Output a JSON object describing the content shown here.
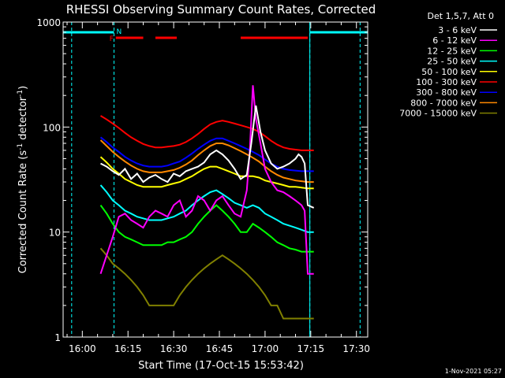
{
  "chart_data": {
    "type": "line",
    "title": "RHESSI Observing Summary Count Rates, Corrected",
    "xlabel": "Start Time (17-Oct-15 15:53:42)",
    "ylabel_main": "Corrected Count Rate (s",
    "ylabel_sup1": "-1",
    "ylabel_mid": " detector",
    "ylabel_sup2": "-1",
    "ylabel_end": ")",
    "yscale": "log",
    "ylim": [
      1,
      1000
    ],
    "xlim_min": [
      -6.3,
      93.7
    ],
    "x_ticks": [
      {
        "label": "16:00",
        "min": 0
      },
      {
        "label": "16:15",
        "min": 15
      },
      {
        "label": "16:30",
        "min": 30
      },
      {
        "label": "16:45",
        "min": 45
      },
      {
        "label": "17:00",
        "min": 60
      },
      {
        "label": "17:15",
        "min": 75
      },
      {
        "label": "17:30",
        "min": 90
      }
    ],
    "y_ticks": [
      {
        "label": "1",
        "value": 1
      },
      {
        "label": "10",
        "value": 10
      },
      {
        "label": "100",
        "value": 100
      },
      {
        "label": "1000",
        "value": 1000
      }
    ],
    "legend_title": "Det 1,5,7, Att 0",
    "legend_position": "top-right",
    "series": [
      {
        "name": "3 - 6 keV",
        "color": "#ffffff",
        "x": [
          6,
          8,
          10,
          12,
          14,
          16,
          18,
          20,
          22,
          24,
          26,
          28,
          30,
          32,
          34,
          36,
          38,
          40,
          42,
          44,
          46,
          48,
          50,
          52,
          54,
          55.5,
          57,
          58.5,
          60,
          62,
          64,
          66,
          68,
          70,
          71,
          72,
          73,
          74,
          76
        ],
        "y": [
          45,
          42,
          38,
          35,
          40,
          32,
          36,
          30,
          33,
          35,
          32,
          30,
          36,
          34,
          38,
          40,
          42,
          46,
          55,
          60,
          55,
          48,
          40,
          32,
          35,
          70,
          160,
          90,
          60,
          45,
          40,
          42,
          45,
          50,
          55,
          52,
          45,
          18,
          17
        ]
      },
      {
        "name": "6 - 12 keV",
        "color": "#ff00ff",
        "x": [
          6,
          8,
          10,
          12,
          14,
          16,
          18,
          20,
          22,
          24,
          26,
          28,
          30,
          32,
          34,
          36,
          38,
          40,
          42,
          44,
          46,
          48,
          50,
          52,
          54,
          55,
          56,
          57,
          58.5,
          60,
          62,
          64,
          66,
          68,
          70,
          72,
          73,
          74,
          76
        ],
        "y": [
          4,
          6,
          9,
          14,
          15,
          13,
          12,
          11,
          14,
          16,
          15,
          14,
          18,
          20,
          14,
          16,
          22,
          20,
          16,
          20,
          22,
          18,
          15,
          14,
          25,
          60,
          250,
          120,
          70,
          40,
          30,
          25,
          24,
          22,
          20,
          18,
          16,
          4,
          4
        ]
      },
      {
        "name": "12 - 25 keV",
        "color": "#00ff00",
        "x": [
          6,
          8,
          10,
          12,
          14,
          16,
          18,
          20,
          22,
          24,
          26,
          28,
          30,
          32,
          34,
          36,
          38,
          40,
          42,
          44,
          46,
          48,
          50,
          52,
          54,
          56,
          58,
          60,
          62,
          64,
          66,
          68,
          70,
          72,
          74,
          76
        ],
        "y": [
          18,
          15,
          12,
          10,
          9,
          8.5,
          8,
          7.5,
          7.5,
          7.5,
          7.5,
          8,
          8,
          8.5,
          9,
          10,
          12,
          14,
          16,
          18,
          16,
          14,
          12,
          10,
          10,
          12,
          11,
          10,
          9,
          8,
          7.5,
          7,
          6.8,
          6.5,
          6.5,
          6.5
        ]
      },
      {
        "name": "25 - 50 keV",
        "color": "#00ffff",
        "x": [
          6,
          8,
          10,
          12,
          14,
          16,
          18,
          20,
          22,
          24,
          26,
          28,
          30,
          32,
          34,
          36,
          38,
          40,
          42,
          44,
          46,
          48,
          50,
          52,
          54,
          56,
          58,
          60,
          62,
          64,
          66,
          68,
          70,
          72,
          74,
          76
        ],
        "y": [
          28,
          24,
          20,
          18,
          16,
          15,
          14,
          13.5,
          13,
          13,
          13,
          13.5,
          14,
          15,
          16,
          18,
          20,
          22,
          24,
          25,
          23,
          21,
          19,
          18,
          17,
          18,
          17,
          15,
          14,
          13,
          12,
          11.5,
          11,
          10.5,
          10,
          10
        ]
      },
      {
        "name": "50 - 100 keV",
        "color": "#ffff00",
        "x": [
          6,
          8,
          10,
          12,
          14,
          16,
          18,
          20,
          22,
          24,
          26,
          28,
          30,
          32,
          34,
          36,
          38,
          40,
          42,
          44,
          46,
          48,
          50,
          52,
          54,
          56,
          58,
          60,
          62,
          64,
          66,
          68,
          70,
          72,
          74,
          76
        ],
        "y": [
          52,
          46,
          40,
          36,
          32,
          30,
          28,
          27,
          27,
          27,
          27,
          28,
          29,
          30,
          32,
          34,
          37,
          40,
          42,
          42,
          40,
          38,
          36,
          34,
          34,
          34,
          33,
          31,
          30,
          29,
          28,
          27,
          27,
          26.5,
          26,
          26
        ]
      },
      {
        "name": "100 - 300 keV",
        "color": "#ff0000",
        "x": [
          6,
          8,
          10,
          12,
          14,
          16,
          18,
          20,
          22,
          24,
          26,
          28,
          30,
          32,
          34,
          36,
          38,
          40,
          42,
          44,
          46,
          48,
          50,
          52,
          54,
          56,
          58,
          60,
          62,
          64,
          66,
          68,
          70,
          72,
          74,
          76
        ],
        "y": [
          128,
          118,
          108,
          98,
          88,
          80,
          74,
          69,
          66,
          64,
          64,
          65,
          66,
          68,
          72,
          78,
          86,
          96,
          106,
          112,
          115,
          112,
          108,
          104,
          100,
          96,
          90,
          82,
          74,
          68,
          64,
          62,
          61,
          60,
          60,
          60
        ]
      },
      {
        "name": "300 - 800 keV",
        "color": "#0000ff",
        "x": [
          6,
          8,
          10,
          12,
          14,
          16,
          18,
          20,
          22,
          24,
          26,
          28,
          30,
          32,
          34,
          36,
          38,
          40,
          42,
          44,
          46,
          48,
          50,
          52,
          54,
          56,
          58,
          60,
          62,
          64,
          66,
          68,
          70,
          72,
          74,
          76
        ],
        "y": [
          80,
          72,
          64,
          58,
          52,
          48,
          45,
          43,
          42,
          42,
          42,
          43,
          45,
          47,
          51,
          56,
          62,
          68,
          74,
          78,
          78,
          74,
          70,
          66,
          62,
          58,
          54,
          49,
          45,
          42,
          40,
          39,
          38.5,
          38,
          38,
          38
        ]
      },
      {
        "name": "800 - 7000 keV",
        "color": "#ff8800",
        "x": [
          6,
          8,
          10,
          12,
          14,
          16,
          18,
          20,
          22,
          24,
          26,
          28,
          30,
          32,
          34,
          36,
          38,
          40,
          42,
          44,
          46,
          48,
          50,
          52,
          54,
          56,
          58,
          60,
          62,
          64,
          66,
          68,
          70,
          72,
          74,
          76
        ],
        "y": [
          75,
          66,
          58,
          52,
          47,
          43,
          40,
          38,
          37,
          37,
          37,
          38,
          39,
          41,
          44,
          48,
          54,
          60,
          66,
          70,
          70,
          67,
          63,
          59,
          55,
          51,
          47,
          42,
          38,
          35,
          33,
          32,
          31,
          30.5,
          30,
          30
        ]
      },
      {
        "name": "7000 - 15000 keV",
        "color": "#808000",
        "x": [
          6,
          8,
          10,
          12,
          14,
          16,
          18,
          20,
          22,
          24,
          26,
          28,
          30,
          32,
          34,
          36,
          38,
          40,
          42,
          44,
          46,
          48,
          50,
          52,
          54,
          56,
          58,
          60,
          62,
          64,
          66,
          68,
          70,
          72,
          74,
          76
        ],
        "y": [
          7,
          6,
          5,
          4.5,
          4,
          3.5,
          3,
          2.5,
          2,
          2,
          2,
          2,
          2,
          2.5,
          3,
          3.5,
          4,
          4.5,
          5,
          5.5,
          6,
          5.5,
          5,
          4.5,
          4,
          3.5,
          3,
          2.5,
          2,
          2,
          1.5,
          1.5,
          1.5,
          1.5,
          1.5,
          1.5
        ]
      }
    ],
    "annotations": {
      "night_label": "N",
      "flare_label": "F",
      "night_intervals": [
        [
          -6.3,
          10.4
        ],
        [
          74.7,
          93.7
        ]
      ],
      "flare_intervals": [
        [
          11,
          20
        ],
        [
          24,
          31
        ],
        [
          52,
          74
        ]
      ],
      "dashed_lines_min": [
        -3.5,
        10.4,
        74.7,
        91.2
      ],
      "solid_lines_min": [
        74.7
      ],
      "night_color": "#00ffff",
      "flare_color": "#ff0000"
    },
    "footer_date": "1-Nov-2021 05:27"
  }
}
